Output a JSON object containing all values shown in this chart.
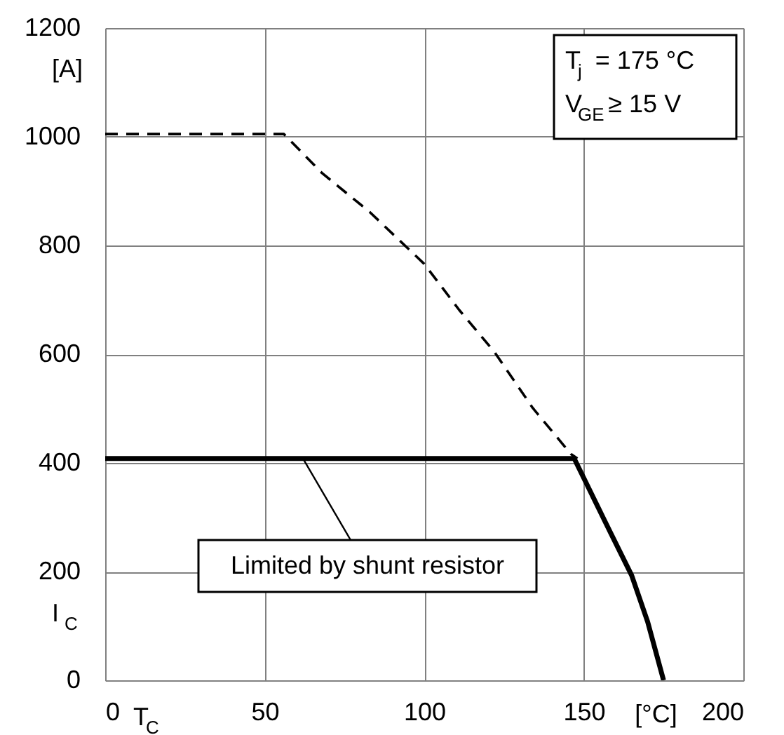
{
  "chart_data": {
    "type": "line",
    "xlabel": "T$_{C}$",
    "ylabel": "I$_{C}$",
    "series": [
      {
        "color": "#000000",
        "line_style": "dashed",
        "x": [
          0,
          56,
          68,
          83,
          100,
          111,
          122,
          134,
          146,
          148
        ],
        "values": [
          1005,
          1005,
          933,
          861,
          766,
          681,
          604,
          501,
          416,
          408
        ]
      },
      {
        "color": "#000000",
        "line_style": "solid",
        "x": [
          0,
          147,
          157,
          165,
          170,
          175
        ],
        "values": [
          408,
          408,
          288,
          193,
          108,
          0
        ]
      }
    ],
    "xlim": [
      0,
      200
    ],
    "ylim": [
      0,
      1200
    ],
    "xticks": [
      0,
      50,
      100,
      150,
      200
    ],
    "yticks": [
      0,
      200,
      400,
      600,
      800,
      1000,
      1200
    ],
    "grid": true,
    "annotations": [
      "[A]",
      "[°C]",
      "T$_{j}$ = 175 °C",
      "V$_{GE}$ ≥ 15 V",
      {
        "text": "Limited by shunt resistor",
        "x": 62,
        "y": 408
      }
    ]
  }
}
